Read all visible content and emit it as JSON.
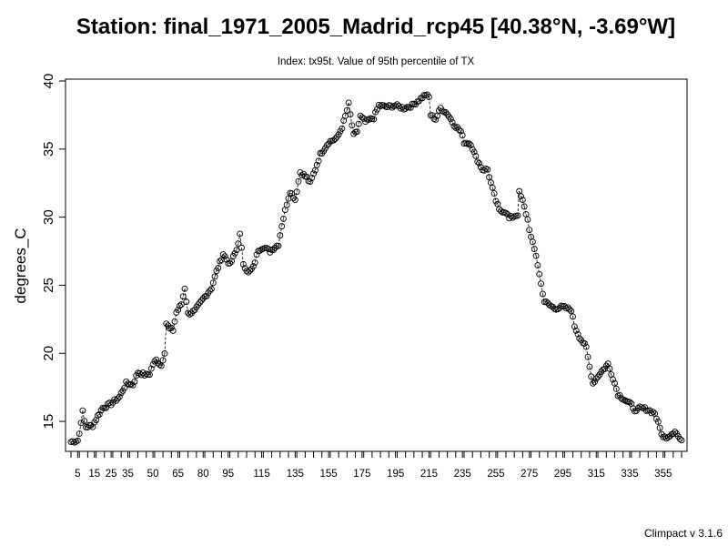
{
  "footer": "Climpact v 3.1.6",
  "chart_data": {
    "type": "line",
    "line_style": "dashed line with open circle markers",
    "title": "Station: final_1971_2005_Madrid_rcp45 [40.38°N, -3.69°W]",
    "subtitle": "Index: tx95t. Value of 95th percentile of TX",
    "xlabel": "",
    "ylabel": "degrees_C",
    "xlim": [
      1,
      366
    ],
    "ylim": [
      13,
      40
    ],
    "x_ticks": [
      5,
      15,
      25,
      35,
      50,
      65,
      80,
      95,
      115,
      135,
      155,
      175,
      195,
      215,
      235,
      255,
      275,
      295,
      315,
      335,
      355
    ],
    "y_ticks": [
      15,
      20,
      25,
      30,
      35,
      40
    ],
    "grid": false,
    "legend": "none",
    "series": [
      {
        "x_start": 1,
        "x_step": 1,
        "anchor_points": [
          [
            1,
            13.5
          ],
          [
            5,
            13.6
          ],
          [
            6,
            14.1
          ],
          [
            7,
            15.0
          ],
          [
            8,
            15.7
          ],
          [
            9,
            15.0
          ],
          [
            10,
            14.6
          ],
          [
            14,
            14.7
          ],
          [
            17,
            15.4
          ],
          [
            20,
            16.0
          ],
          [
            25,
            16.3
          ],
          [
            30,
            16.8
          ],
          [
            34,
            17.8
          ],
          [
            38,
            17.7
          ],
          [
            41,
            18.6
          ],
          [
            46,
            18.4
          ],
          [
            48,
            18.5
          ],
          [
            50,
            19.2
          ],
          [
            52,
            19.5
          ],
          [
            55,
            19.1
          ],
          [
            57,
            20.1
          ],
          [
            58,
            22.2
          ],
          [
            60,
            21.8
          ],
          [
            62,
            21.7
          ],
          [
            64,
            23.0
          ],
          [
            67,
            23.6
          ],
          [
            69,
            24.8
          ],
          [
            71,
            22.9
          ],
          [
            75,
            23.1
          ],
          [
            80,
            24.0
          ],
          [
            85,
            24.8
          ],
          [
            88,
            26.0
          ],
          [
            92,
            27.3
          ],
          [
            96,
            26.5
          ],
          [
            100,
            27.6
          ],
          [
            102,
            28.7
          ],
          [
            104,
            26.6
          ],
          [
            107,
            25.9
          ],
          [
            110,
            26.3
          ],
          [
            113,
            27.6
          ],
          [
            116,
            27.8
          ],
          [
            120,
            27.5
          ],
          [
            125,
            28.0
          ],
          [
            127,
            29.4
          ],
          [
            130,
            31.0
          ],
          [
            132,
            31.9
          ],
          [
            135,
            31.3
          ],
          [
            138,
            33.3
          ],
          [
            142,
            32.9
          ],
          [
            144,
            32.5
          ],
          [
            147,
            33.5
          ],
          [
            150,
            34.6
          ],
          [
            155,
            35.5
          ],
          [
            160,
            35.8
          ],
          [
            163,
            36.6
          ],
          [
            165,
            37.4
          ],
          [
            167,
            38.3
          ],
          [
            168,
            37.5
          ],
          [
            170,
            36.0
          ],
          [
            172,
            36.3
          ],
          [
            174,
            37.4
          ],
          [
            177,
            37.0
          ],
          [
            182,
            37.3
          ],
          [
            185,
            38.2
          ],
          [
            190,
            38.1
          ],
          [
            195,
            38.2
          ],
          [
            200,
            38.0
          ],
          [
            205,
            38.2
          ],
          [
            210,
            38.7
          ],
          [
            213,
            39.0
          ],
          [
            215,
            38.8
          ],
          [
            216,
            37.5
          ],
          [
            219,
            37.2
          ],
          [
            222,
            38.0
          ],
          [
            226,
            37.6
          ],
          [
            230,
            36.8
          ],
          [
            234,
            36.3
          ],
          [
            236,
            35.5
          ],
          [
            240,
            35.4
          ],
          [
            243,
            34.4
          ],
          [
            247,
            33.5
          ],
          [
            250,
            33.5
          ],
          [
            252,
            32.5
          ],
          [
            255,
            31.2
          ],
          [
            257,
            30.5
          ],
          [
            261,
            30.4
          ],
          [
            263,
            29.9
          ],
          [
            268,
            30.2
          ],
          [
            269,
            31.8
          ],
          [
            271,
            31.2
          ],
          [
            274,
            29.8
          ],
          [
            276,
            28.5
          ],
          [
            279,
            27.2
          ],
          [
            282,
            25.1
          ],
          [
            284,
            23.8
          ],
          [
            290,
            23.3
          ],
          [
            295,
            23.4
          ],
          [
            300,
            23.2
          ],
          [
            302,
            22.0
          ],
          [
            305,
            21.2
          ],
          [
            309,
            20.4
          ],
          [
            311,
            19.0
          ],
          [
            313,
            17.8
          ],
          [
            317,
            18.5
          ],
          [
            322,
            19.2
          ],
          [
            325,
            18.2
          ],
          [
            328,
            17.0
          ],
          [
            331,
            16.7
          ],
          [
            336,
            16.2
          ],
          [
            339,
            15.7
          ],
          [
            341,
            16.0
          ],
          [
            345,
            15.9
          ],
          [
            350,
            15.6
          ],
          [
            353,
            14.5
          ],
          [
            355,
            13.8
          ],
          [
            358,
            13.9
          ],
          [
            362,
            14.3
          ],
          [
            366,
            13.5
          ]
        ]
      }
    ]
  }
}
